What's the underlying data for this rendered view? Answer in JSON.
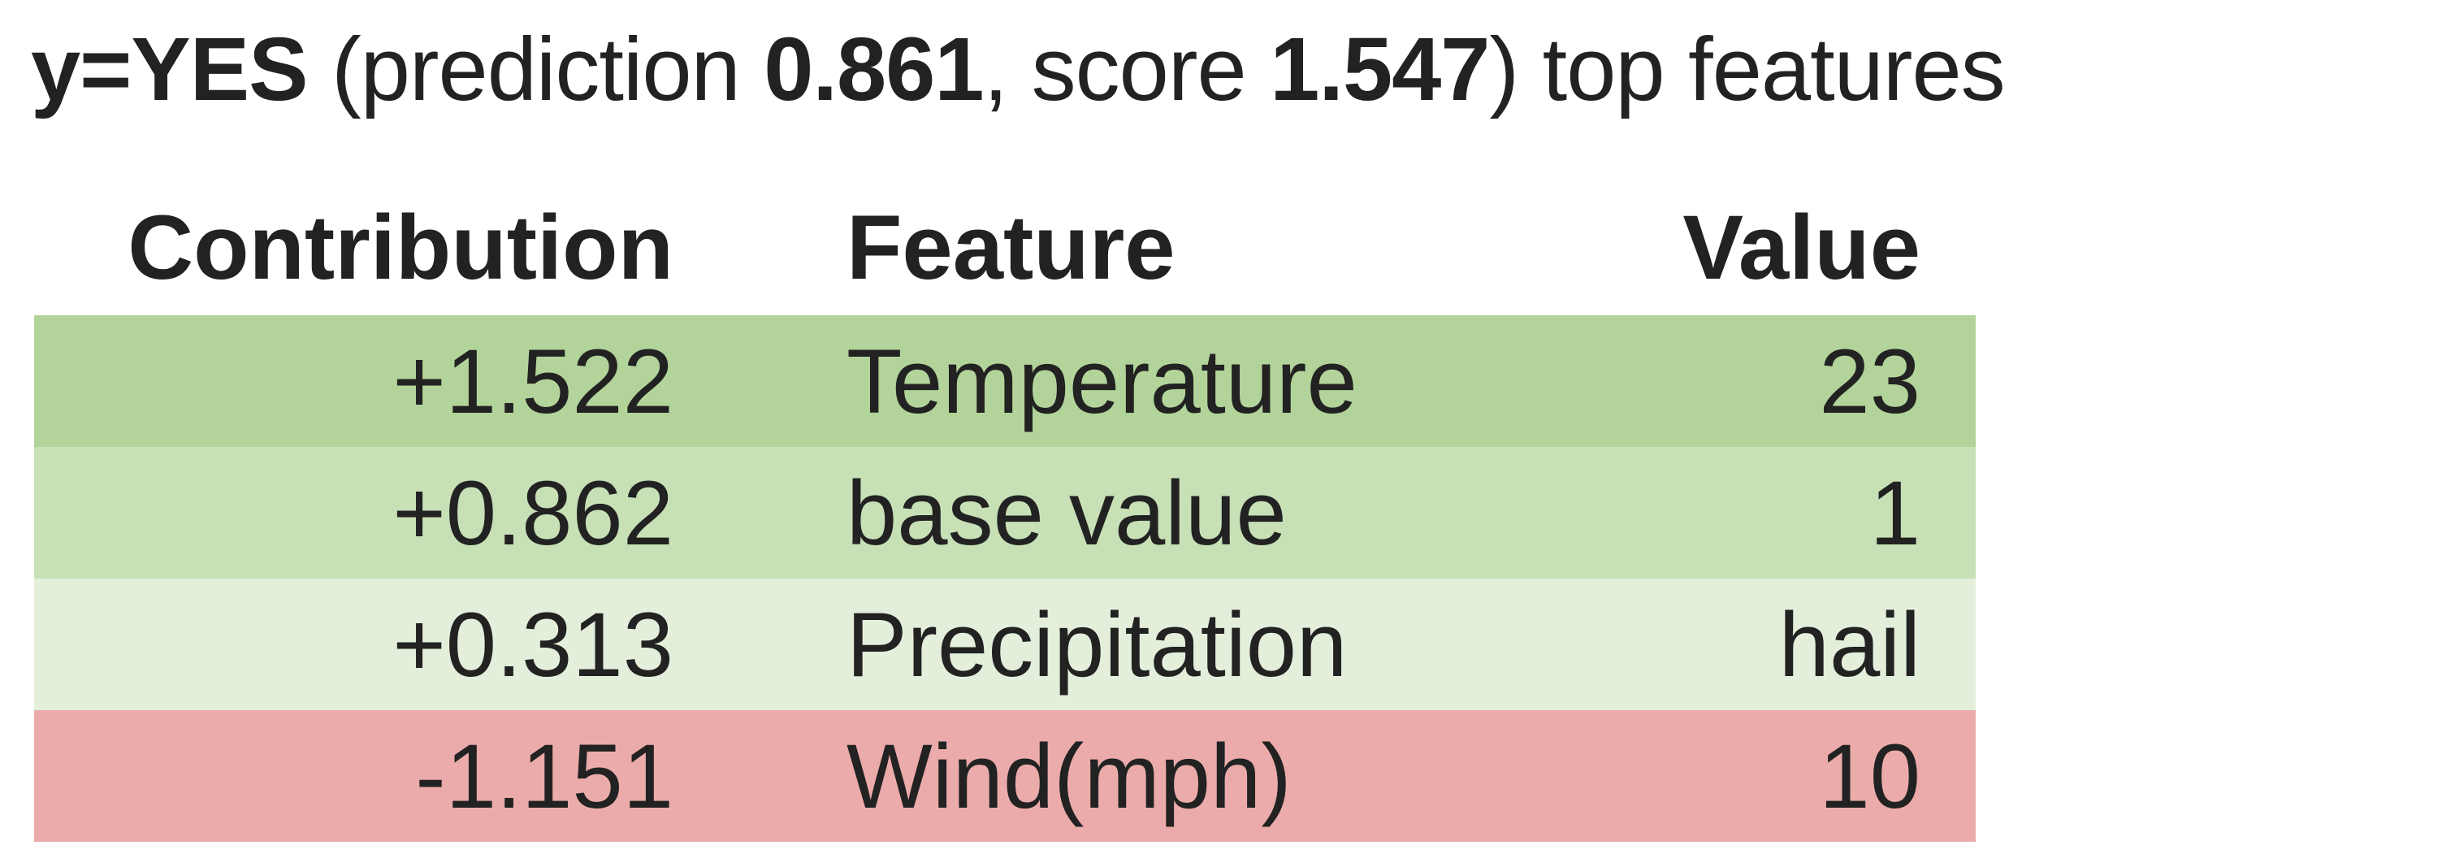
{
  "heading": {
    "label": "y=YES",
    "open": " (prediction ",
    "prediction": "0.861",
    "mid": ", score ",
    "score": "1.547",
    "close": ") top features"
  },
  "table": {
    "headers": [
      "Contribution",
      "Feature",
      "Value"
    ],
    "rows": [
      {
        "contribution": "+1.522",
        "feature": "Temperature",
        "value": "23",
        "color": "#b2d49a"
      },
      {
        "contribution": "+0.862",
        "feature": "base value",
        "value": "1",
        "color": "#c8e0b6"
      },
      {
        "contribution": "+0.313",
        "feature": "Precipitation",
        "value": "hail",
        "color": "#e3efdb"
      },
      {
        "contribution": "-1.151",
        "feature": "Wind(mph)",
        "value": "10",
        "color": "#ecabab"
      }
    ]
  }
}
